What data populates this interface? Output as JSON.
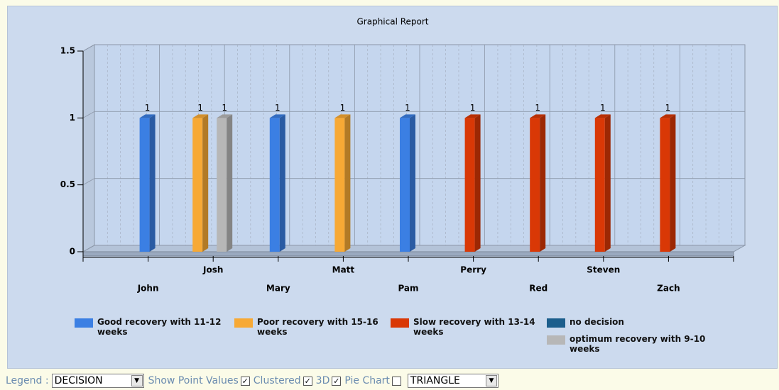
{
  "chart_data": {
    "type": "bar",
    "title": "Graphical Report",
    "clustered": true,
    "three_d": true,
    "categories": [
      "John",
      "Josh",
      "Mary",
      "Matt",
      "Pam",
      "Perry",
      "Red",
      "Steven",
      "Zach"
    ],
    "series": [
      {
        "name": "Good recovery with 11-12 weeks",
        "color": "#3b7fe3",
        "values": [
          1,
          null,
          1,
          null,
          1,
          null,
          null,
          null,
          null
        ]
      },
      {
        "name": "Poor recovery with 15-16 weeks",
        "color": "#f7a935",
        "values": [
          null,
          1,
          null,
          1,
          null,
          null,
          null,
          null,
          null
        ]
      },
      {
        "name": "Slow recovery with 13-14 weeks",
        "color": "#d93806",
        "values": [
          null,
          null,
          null,
          null,
          null,
          1,
          1,
          1,
          1
        ]
      },
      {
        "name": "no decision",
        "color": "#1c5e8c",
        "values": [
          null,
          null,
          null,
          null,
          null,
          null,
          null,
          null,
          null
        ]
      },
      {
        "name": "optimum recovery with 9-10 weeks",
        "color": "#b7b7b7",
        "values": [
          null,
          1,
          null,
          null,
          null,
          null,
          null,
          null,
          null
        ]
      }
    ],
    "ylim": [
      0,
      1.5
    ],
    "yticks": [
      0,
      0.5,
      1,
      1.5
    ],
    "grid": true,
    "show_point_values": true
  },
  "controls": {
    "legend_label": "Legend :",
    "legend_select": "DECISION",
    "checkboxes": [
      {
        "label": "Show Point Values",
        "checked": true
      },
      {
        "label": "Clustered",
        "checked": true
      },
      {
        "label": "3D",
        "checked": true
      },
      {
        "label": "Pie Chart",
        "checked": false
      }
    ],
    "shape_select": "TRIANGLE"
  }
}
